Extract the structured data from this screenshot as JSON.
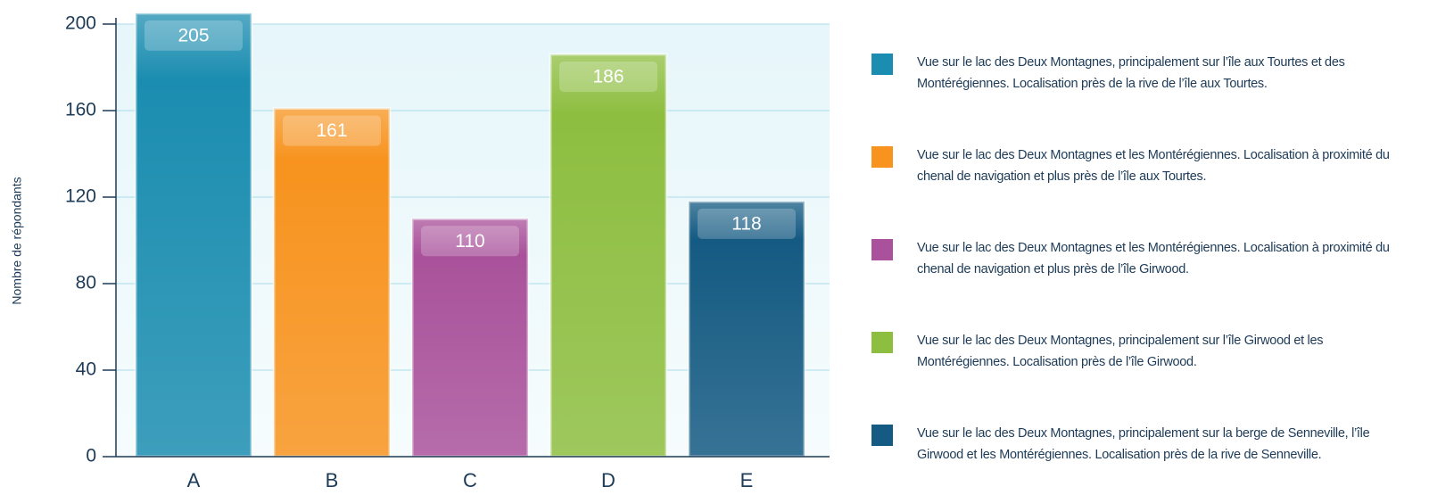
{
  "chart_data": {
    "type": "bar",
    "y_label": "Nombre de répondants",
    "categories": [
      "A",
      "B",
      "C",
      "D",
      "E"
    ],
    "series": [
      {
        "name": "Vue sur le lac des Deux Montagnes, principalement sur l’île aux Tourtes et des Montérégiennes. Localisation près de la rive de l’île aux Tourtes.",
        "color": "#1b8db0"
      },
      {
        "name": "Vue sur le lac des Deux Montagnes et les Montérégiennes. Localisation à proximité du chenal de navigation et plus près de l’île aux Tourtes.",
        "color": "#f7931e"
      },
      {
        "name": "Vue sur le lac des Deux Montagnes et les Montérégiennes. Localisation à proximité du chenal de navigation et plus près de l’île Girwood.",
        "color": "#a9529b"
      },
      {
        "name": "Vue sur le lac des Deux Montagnes, principalement sur l’île Girwood et les Montérégiennes. Localisation près de l’île Girwood.",
        "color": "#8dbe40"
      },
      {
        "name": "Vue sur le lac des Deux Montagnes, principalement sur la berge de Senneville, l’île Girwood et les Montérégiennes. Localisation près de la rive de Senneville.",
        "color": "#145a82"
      }
    ],
    "values": [
      205,
      161,
      110,
      186,
      118
    ],
    "ylim": [
      0,
      200
    ],
    "yticks": [
      0,
      40,
      80,
      120,
      160,
      200
    ],
    "grid": true,
    "legend": "right"
  }
}
